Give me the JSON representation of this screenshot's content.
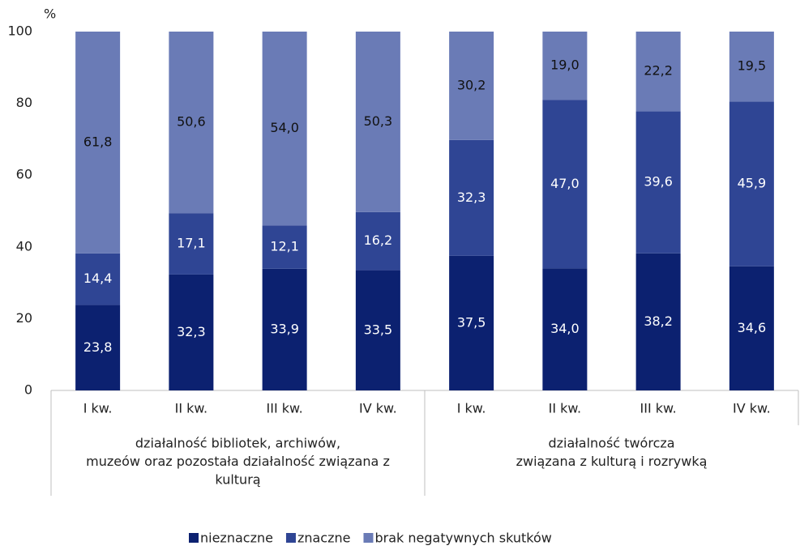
{
  "chart_data": {
    "type": "stacked_bar",
    "y_label": "%",
    "categories": [
      "I kw.",
      "II kw.",
      "III kw.",
      "IV kw.",
      "I kw.",
      "II kw.",
      "III kw.",
      "IV kw."
    ],
    "groups": [
      {
        "label": [
          "działalność bibliotek, archiwów,",
          "muzeów oraz pozostała działalność związana z",
          "kulturą"
        ]
      },
      {
        "label": [
          "działalność twórcza",
          "związana z kulturą i rozrywką"
        ]
      }
    ],
    "series": [
      {
        "name": "nieznaczne",
        "color": "#0c2170",
        "label_color": "#ffffff",
        "values": [
          23.8,
          32.3,
          33.9,
          33.5,
          37.5,
          34.0,
          38.2,
          34.6
        ],
        "value_labels": [
          "23,8",
          "32,3",
          "33,9",
          "33,5",
          "37,5",
          "34,0",
          "38,2",
          "34,6"
        ]
      },
      {
        "name": "znaczne",
        "color": "#2f4594",
        "label_color": "#ffffff",
        "values": [
          14.4,
          17.1,
          12.1,
          16.2,
          32.3,
          47.0,
          39.6,
          45.9
        ],
        "value_labels": [
          "14,4",
          "17,1",
          "12,1",
          "16,2",
          "32,3",
          "47,0",
          "39,6",
          "45,9"
        ]
      },
      {
        "name": "brak negatywnych skutków",
        "color": "#6a7bb6",
        "label_color": "#111111",
        "values": [
          61.8,
          50.6,
          54.0,
          50.3,
          30.2,
          19.0,
          22.2,
          19.5
        ],
        "value_labels": [
          "61,8",
          "50,6",
          "54,0",
          "50,3",
          "30,2",
          "19,0",
          "22,2",
          "19,5"
        ]
      }
    ],
    "ylim": [
      0,
      100
    ],
    "yticks": [
      0,
      20,
      40,
      60,
      80,
      100
    ],
    "grid": false,
    "legend": "bottom"
  }
}
